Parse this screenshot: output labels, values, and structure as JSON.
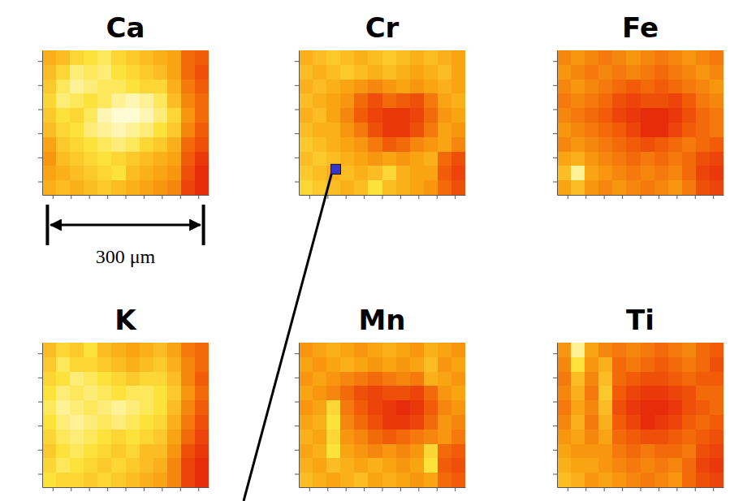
{
  "chart_data": [
    {
      "type": "heatmap",
      "title": "Ca",
      "tick_labels": false,
      "xlim": [
        0,
        320
      ],
      "ylim": [
        0,
        270
      ],
      "xticks": [
        20,
        55,
        90,
        125,
        160,
        195,
        230,
        265,
        300
      ],
      "yticks": [
        25,
        70,
        115,
        160,
        205,
        250
      ],
      "zlim": [
        0,
        1
      ],
      "scale_bar": {
        "value": 300,
        "label": "300 μm"
      },
      "cells": [
        [
          0.55,
          0.6,
          0.7,
          0.75,
          0.8,
          0.7,
          0.65,
          0.6,
          0.55,
          0.5,
          0.3,
          0.25
        ],
        [
          0.6,
          0.7,
          0.85,
          0.8,
          0.85,
          0.75,
          0.7,
          0.65,
          0.6,
          0.5,
          0.3,
          0.2
        ],
        [
          0.65,
          0.8,
          0.9,
          0.85,
          0.8,
          0.8,
          0.75,
          0.7,
          0.7,
          0.55,
          0.35,
          0.25
        ],
        [
          0.7,
          0.85,
          0.8,
          0.75,
          0.8,
          0.9,
          0.95,
          0.9,
          0.8,
          0.6,
          0.4,
          0.3
        ],
        [
          0.65,
          0.75,
          0.7,
          0.8,
          0.95,
          1,
          1,
          0.95,
          0.85,
          0.7,
          0.45,
          0.3
        ],
        [
          0.6,
          0.7,
          0.75,
          0.85,
          0.9,
          0.95,
          0.9,
          0.85,
          0.75,
          0.65,
          0.4,
          0.25
        ],
        [
          0.5,
          0.65,
          0.7,
          0.75,
          0.8,
          0.85,
          0.8,
          0.7,
          0.65,
          0.55,
          0.3,
          0.2
        ],
        [
          0.45,
          0.6,
          0.65,
          0.7,
          0.75,
          0.7,
          0.65,
          0.6,
          0.55,
          0.5,
          0.25,
          0.1
        ],
        [
          0.5,
          0.55,
          0.6,
          0.65,
          0.7,
          0.75,
          0.6,
          0.55,
          0.5,
          0.45,
          0.2,
          0.05
        ],
        [
          0.55,
          0.6,
          0.55,
          0.6,
          0.65,
          0.6,
          0.55,
          0.5,
          0.45,
          0.4,
          0.15,
          0.05
        ]
      ]
    },
    {
      "type": "heatmap",
      "title": "Cr",
      "tick_labels": false,
      "xlim": [
        0,
        320
      ],
      "ylim": [
        0,
        270
      ],
      "xticks": [
        20,
        55,
        90,
        125,
        160,
        195,
        230,
        265,
        300
      ],
      "yticks": [
        25,
        70,
        115,
        160,
        205,
        250
      ],
      "zlim": [
        0,
        1
      ],
      "highlight": {
        "x": 71,
        "y": 48,
        "color": "#3636c8"
      },
      "cells": [
        [
          0.55,
          0.6,
          0.65,
          0.6,
          0.55,
          0.6,
          0.65,
          0.6,
          0.55,
          0.6,
          0.55,
          0.5
        ],
        [
          0.6,
          0.55,
          0.6,
          0.65,
          0.6,
          0.55,
          0.6,
          0.55,
          0.5,
          0.55,
          0.6,
          0.5
        ],
        [
          0.55,
          0.6,
          0.55,
          0.5,
          0.45,
          0.4,
          0.45,
          0.5,
          0.45,
          0.5,
          0.55,
          0.5
        ],
        [
          0.6,
          0.55,
          0.5,
          0.45,
          0.3,
          0.2,
          0.3,
          0.25,
          0.2,
          0.35,
          0.5,
          0.55
        ],
        [
          0.55,
          0.6,
          0.5,
          0.4,
          0.25,
          0.15,
          0.1,
          0.1,
          0.15,
          0.3,
          0.45,
          0.5
        ],
        [
          0.6,
          0.55,
          0.55,
          0.45,
          0.35,
          0.2,
          0.1,
          0.1,
          0.2,
          0.35,
          0.5,
          0.45
        ],
        [
          0.65,
          0.6,
          0.55,
          0.5,
          0.45,
          0.35,
          0.25,
          0.3,
          0.4,
          0.45,
          0.5,
          0.4
        ],
        [
          0.6,
          0.65,
          0.6,
          0.55,
          0.5,
          0.45,
          0.5,
          0.45,
          0.5,
          0.55,
          0.3,
          0.2
        ],
        [
          0.65,
          0.6,
          0.55,
          0.6,
          0.55,
          0.6,
          0.7,
          0.55,
          0.5,
          0.5,
          0.25,
          0.15
        ],
        [
          0.7,
          0.65,
          0.6,
          0.55,
          0.6,
          0.75,
          0.6,
          0.55,
          0.5,
          0.45,
          0.3,
          0.2
        ]
      ]
    },
    {
      "type": "heatmap",
      "title": "Fe",
      "tick_labels": false,
      "xlim": [
        0,
        320
      ],
      "ylim": [
        0,
        270
      ],
      "xticks": [
        20,
        55,
        90,
        125,
        160,
        195,
        230,
        265,
        300
      ],
      "yticks": [
        25,
        70,
        115,
        160,
        205,
        250
      ],
      "zlim": [
        0,
        1
      ],
      "cells": [
        [
          0.4,
          0.45,
          0.4,
          0.35,
          0.4,
          0.45,
          0.4,
          0.35,
          0.4,
          0.45,
          0.4,
          0.35
        ],
        [
          0.45,
          0.4,
          0.35,
          0.4,
          0.35,
          0.4,
          0.35,
          0.3,
          0.35,
          0.4,
          0.45,
          0.4
        ],
        [
          0.4,
          0.45,
          0.4,
          0.35,
          0.3,
          0.25,
          0.3,
          0.25,
          0.3,
          0.35,
          0.4,
          0.45
        ],
        [
          0.35,
          0.4,
          0.35,
          0.3,
          0.2,
          0.15,
          0.2,
          0.2,
          0.15,
          0.25,
          0.35,
          0.4
        ],
        [
          0.4,
          0.35,
          0.3,
          0.25,
          0.15,
          0.1,
          0.05,
          0.05,
          0.1,
          0.2,
          0.3,
          0.35
        ],
        [
          0.45,
          0.4,
          0.35,
          0.3,
          0.25,
          0.15,
          0.05,
          0.05,
          0.15,
          0.25,
          0.3,
          0.35
        ],
        [
          0.4,
          0.45,
          0.4,
          0.35,
          0.3,
          0.25,
          0.2,
          0.25,
          0.3,
          0.35,
          0.3,
          0.25
        ],
        [
          0.5,
          0.55,
          0.45,
          0.4,
          0.35,
          0.3,
          0.35,
          0.3,
          0.35,
          0.3,
          0.2,
          0.15
        ],
        [
          0.6,
          0.9,
          0.5,
          0.45,
          0.4,
          0.35,
          0.4,
          0.35,
          0.4,
          0.3,
          0.15,
          0.1
        ],
        [
          0.5,
          0.6,
          0.45,
          0.4,
          0.45,
          0.4,
          0.35,
          0.4,
          0.45,
          0.35,
          0.2,
          0.15
        ]
      ]
    },
    {
      "type": "heatmap",
      "title": "K",
      "tick_labels": false,
      "xlim": [
        0,
        320
      ],
      "ylim": [
        0,
        270
      ],
      "xticks": [
        20,
        55,
        90,
        125,
        160,
        195,
        230,
        265,
        300
      ],
      "yticks": [
        25,
        70,
        115,
        160,
        205,
        250
      ],
      "zlim": [
        0,
        1
      ],
      "cells": [
        [
          0.6,
          0.7,
          0.65,
          0.75,
          0.6,
          0.55,
          0.5,
          0.55,
          0.6,
          0.5,
          0.35,
          0.3
        ],
        [
          0.65,
          0.8,
          0.7,
          0.7,
          0.65,
          0.6,
          0.55,
          0.6,
          0.65,
          0.55,
          0.4,
          0.3
        ],
        [
          0.7,
          0.75,
          0.85,
          0.8,
          0.75,
          0.7,
          0.65,
          0.7,
          0.7,
          0.6,
          0.4,
          0.25
        ],
        [
          0.75,
          0.85,
          0.8,
          0.85,
          0.8,
          0.75,
          0.8,
          0.8,
          0.75,
          0.65,
          0.45,
          0.3
        ],
        [
          0.8,
          0.9,
          0.85,
          0.8,
          0.85,
          0.9,
          0.85,
          0.8,
          0.75,
          0.6,
          0.4,
          0.25
        ],
        [
          0.75,
          0.85,
          0.9,
          0.85,
          0.8,
          0.85,
          0.8,
          0.75,
          0.7,
          0.55,
          0.35,
          0.2
        ],
        [
          0.7,
          0.8,
          0.85,
          0.8,
          0.75,
          0.7,
          0.75,
          0.7,
          0.65,
          0.5,
          0.3,
          0.15
        ],
        [
          0.65,
          0.75,
          0.8,
          0.75,
          0.7,
          0.65,
          0.7,
          0.6,
          0.6,
          0.45,
          0.2,
          0.1
        ],
        [
          0.7,
          0.8,
          0.75,
          0.7,
          0.65,
          0.7,
          0.65,
          0.6,
          0.55,
          0.4,
          0.15,
          0.05
        ],
        [
          0.75,
          0.7,
          0.7,
          0.65,
          0.7,
          0.65,
          0.6,
          0.55,
          0.5,
          0.4,
          0.15,
          0.05
        ]
      ]
    },
    {
      "type": "heatmap",
      "title": "Mn",
      "tick_labels": false,
      "xlim": [
        0,
        320
      ],
      "ylim": [
        0,
        270
      ],
      "xticks": [
        20,
        55,
        90,
        125,
        160,
        195,
        230,
        265,
        300
      ],
      "yticks": [
        25,
        70,
        115,
        160,
        205,
        250
      ],
      "zlim": [
        0,
        1
      ],
      "cells": [
        [
          0.45,
          0.5,
          0.55,
          0.5,
          0.45,
          0.5,
          0.55,
          0.5,
          0.45,
          0.55,
          0.5,
          0.45
        ],
        [
          0.5,
          0.45,
          0.5,
          0.55,
          0.5,
          0.45,
          0.5,
          0.45,
          0.5,
          0.6,
          0.45,
          0.5
        ],
        [
          0.45,
          0.5,
          0.45,
          0.4,
          0.35,
          0.3,
          0.35,
          0.4,
          0.35,
          0.55,
          0.5,
          0.45
        ],
        [
          0.5,
          0.45,
          0.4,
          0.3,
          0.2,
          0.15,
          0.2,
          0.2,
          0.15,
          0.3,
          0.45,
          0.5
        ],
        [
          0.45,
          0.5,
          0.7,
          0.35,
          0.25,
          0.15,
          0.1,
          0.05,
          0.1,
          0.25,
          0.4,
          0.45
        ],
        [
          0.5,
          0.55,
          0.75,
          0.4,
          0.3,
          0.2,
          0.1,
          0.1,
          0.15,
          0.3,
          0.45,
          0.4
        ],
        [
          0.55,
          0.5,
          0.7,
          0.45,
          0.4,
          0.3,
          0.25,
          0.3,
          0.35,
          0.4,
          0.45,
          0.35
        ],
        [
          0.5,
          0.55,
          0.75,
          0.5,
          0.45,
          0.4,
          0.45,
          0.4,
          0.45,
          0.7,
          0.3,
          0.25
        ],
        [
          0.55,
          0.5,
          0.6,
          0.55,
          0.5,
          0.55,
          0.5,
          0.45,
          0.5,
          0.75,
          0.25,
          0.2
        ],
        [
          0.6,
          0.55,
          0.5,
          0.55,
          0.6,
          0.5,
          0.55,
          0.5,
          0.45,
          0.5,
          0.3,
          0.25
        ]
      ]
    },
    {
      "type": "heatmap",
      "title": "Ti",
      "tick_labels": false,
      "xlim": [
        0,
        320
      ],
      "ylim": [
        0,
        270
      ],
      "xticks": [
        20,
        55,
        90,
        125,
        160,
        195,
        230,
        265,
        300
      ],
      "yticks": [
        25,
        70,
        115,
        160,
        205,
        250
      ],
      "zlim": [
        0,
        1
      ],
      "cells": [
        [
          0.45,
          0.9,
          0.5,
          0.4,
          0.35,
          0.4,
          0.35,
          0.3,
          0.35,
          0.4,
          0.3,
          0.25
        ],
        [
          0.4,
          0.75,
          0.45,
          0.55,
          0.3,
          0.35,
          0.3,
          0.25,
          0.3,
          0.35,
          0.3,
          0.2
        ],
        [
          0.35,
          0.6,
          0.4,
          0.6,
          0.3,
          0.25,
          0.2,
          0.2,
          0.25,
          0.3,
          0.25,
          0.25
        ],
        [
          0.4,
          0.55,
          0.35,
          0.65,
          0.25,
          0.15,
          0.1,
          0.1,
          0.15,
          0.2,
          0.3,
          0.3
        ],
        [
          0.35,
          0.5,
          0.4,
          0.6,
          0.2,
          0.1,
          0.05,
          0.05,
          0.1,
          0.2,
          0.25,
          0.3
        ],
        [
          0.4,
          0.55,
          0.35,
          0.55,
          0.25,
          0.15,
          0.05,
          0.1,
          0.15,
          0.25,
          0.3,
          0.25
        ],
        [
          0.45,
          0.5,
          0.4,
          0.5,
          0.3,
          0.25,
          0.2,
          0.2,
          0.25,
          0.3,
          0.25,
          0.2
        ],
        [
          0.5,
          0.45,
          0.45,
          0.45,
          0.35,
          0.3,
          0.35,
          0.3,
          0.3,
          0.35,
          0.2,
          0.15
        ],
        [
          0.55,
          0.5,
          0.5,
          0.45,
          0.4,
          0.35,
          0.4,
          0.35,
          0.4,
          0.3,
          0.15,
          0.1
        ],
        [
          0.6,
          0.55,
          0.45,
          0.5,
          0.45,
          0.4,
          0.35,
          0.4,
          0.45,
          0.3,
          0.2,
          0.15
        ]
      ]
    }
  ]
}
